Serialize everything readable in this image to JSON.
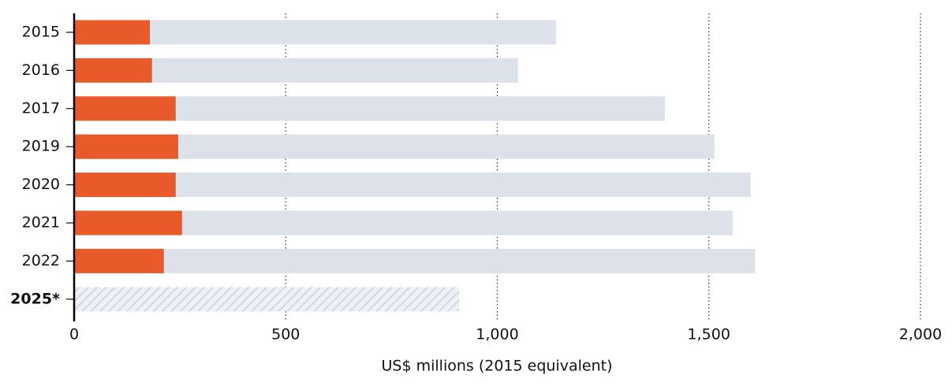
{
  "chart_data": {
    "type": "bar",
    "orientation": "horizontal",
    "overlay": true,
    "x_label": "US$ millions (2015 equivalent)",
    "categories": [
      "2015",
      "2016",
      "2017",
      "2019",
      "2020",
      "2021",
      "2022",
      "2025*"
    ],
    "series": [
      {
        "color": "#dde2ea",
        "values": [
          1139,
          1049,
          1396,
          1513,
          1599,
          1556,
          1609,
          null
        ]
      },
      {
        "color": "#e85a2a",
        "values": [
          179,
          184,
          240,
          246,
          240,
          255,
          212,
          null
        ]
      },
      {
        "color": "#dde2ea",
        "pattern": "hatch",
        "values": [
          null,
          null,
          null,
          null,
          null,
          null,
          null,
          910
        ]
      }
    ],
    "xlim": [
      0,
      2000
    ],
    "xticks": [
      0,
      500,
      {
        "value": 1000,
        "label": "1,000"
      },
      {
        "value": 1500,
        "label": "1,500"
      },
      {
        "value": 2000,
        "label": "2,000"
      }
    ],
    "grid": true
  }
}
